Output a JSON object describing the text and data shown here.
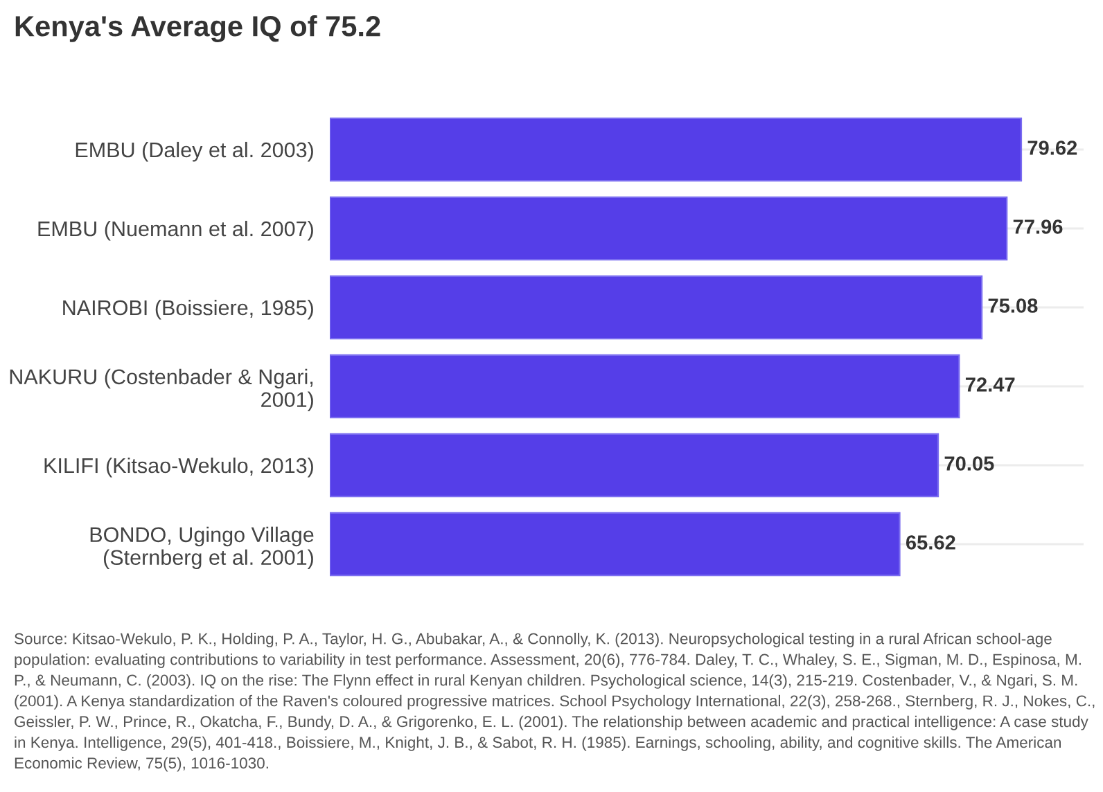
{
  "chart_data": {
    "type": "bar",
    "orientation": "horizontal",
    "title": "Kenya's Average IQ of 75.2",
    "categories": [
      "EMBU (Daley et al. 2003)",
      "EMBU (Nuemann et al. 2007)",
      "NAIROBI (Boissiere, 1985)",
      "NAKURU (Costenbader & Ngari, 2001)",
      "KILIFI (Kitsao-Wekulo, 2013)",
      "BONDO, Ugingo Village (Sternberg et al. 2001)"
    ],
    "values": [
      79.62,
      77.96,
      75.08,
      72.47,
      70.05,
      65.62
    ],
    "color": "#553ee8",
    "data_labels": true,
    "grid": "y",
    "tick_labels": "y",
    "annotations": [
      "Source: Kitsao-Wekulo, P. K., Holding, P. A., Taylor, H. G., Abubakar, A., & Connolly, K. (2013). Neuropsychological testing in a rural African school-age population: evaluating contributions to variability in test performance. Assessment, 20(6), 776-784. Daley, T. C., Whaley, S. E., Sigman, M. D., Espinosa, M. P., & Neumann, C. (2003). IQ on the rise: The Flynn effect in rural Kenyan children. Psychological science, 14(3), 215-219. Costenbader, V., & Ngari, S. M. (2001). A Kenya standardization of the Raven's coloured progressive matrices. School Psychology International, 22(3), 258-268., Sternberg, R. J., Nokes, C., Geissler, P. W., Prince, R., Okatcha, F., Bundy, D. A., & Grigorenko, E. L. (2001). The relationship between academic and practical intelligence: A case study in Kenya. Intelligence, 29(5), 401-418., Boissiere, M., Knight, J. B., & Sabot, R. H. (1985). Earnings, schooling, ability, and cognitive skills. The American Economic Review, 75(5), 1016-1030."
    ]
  }
}
